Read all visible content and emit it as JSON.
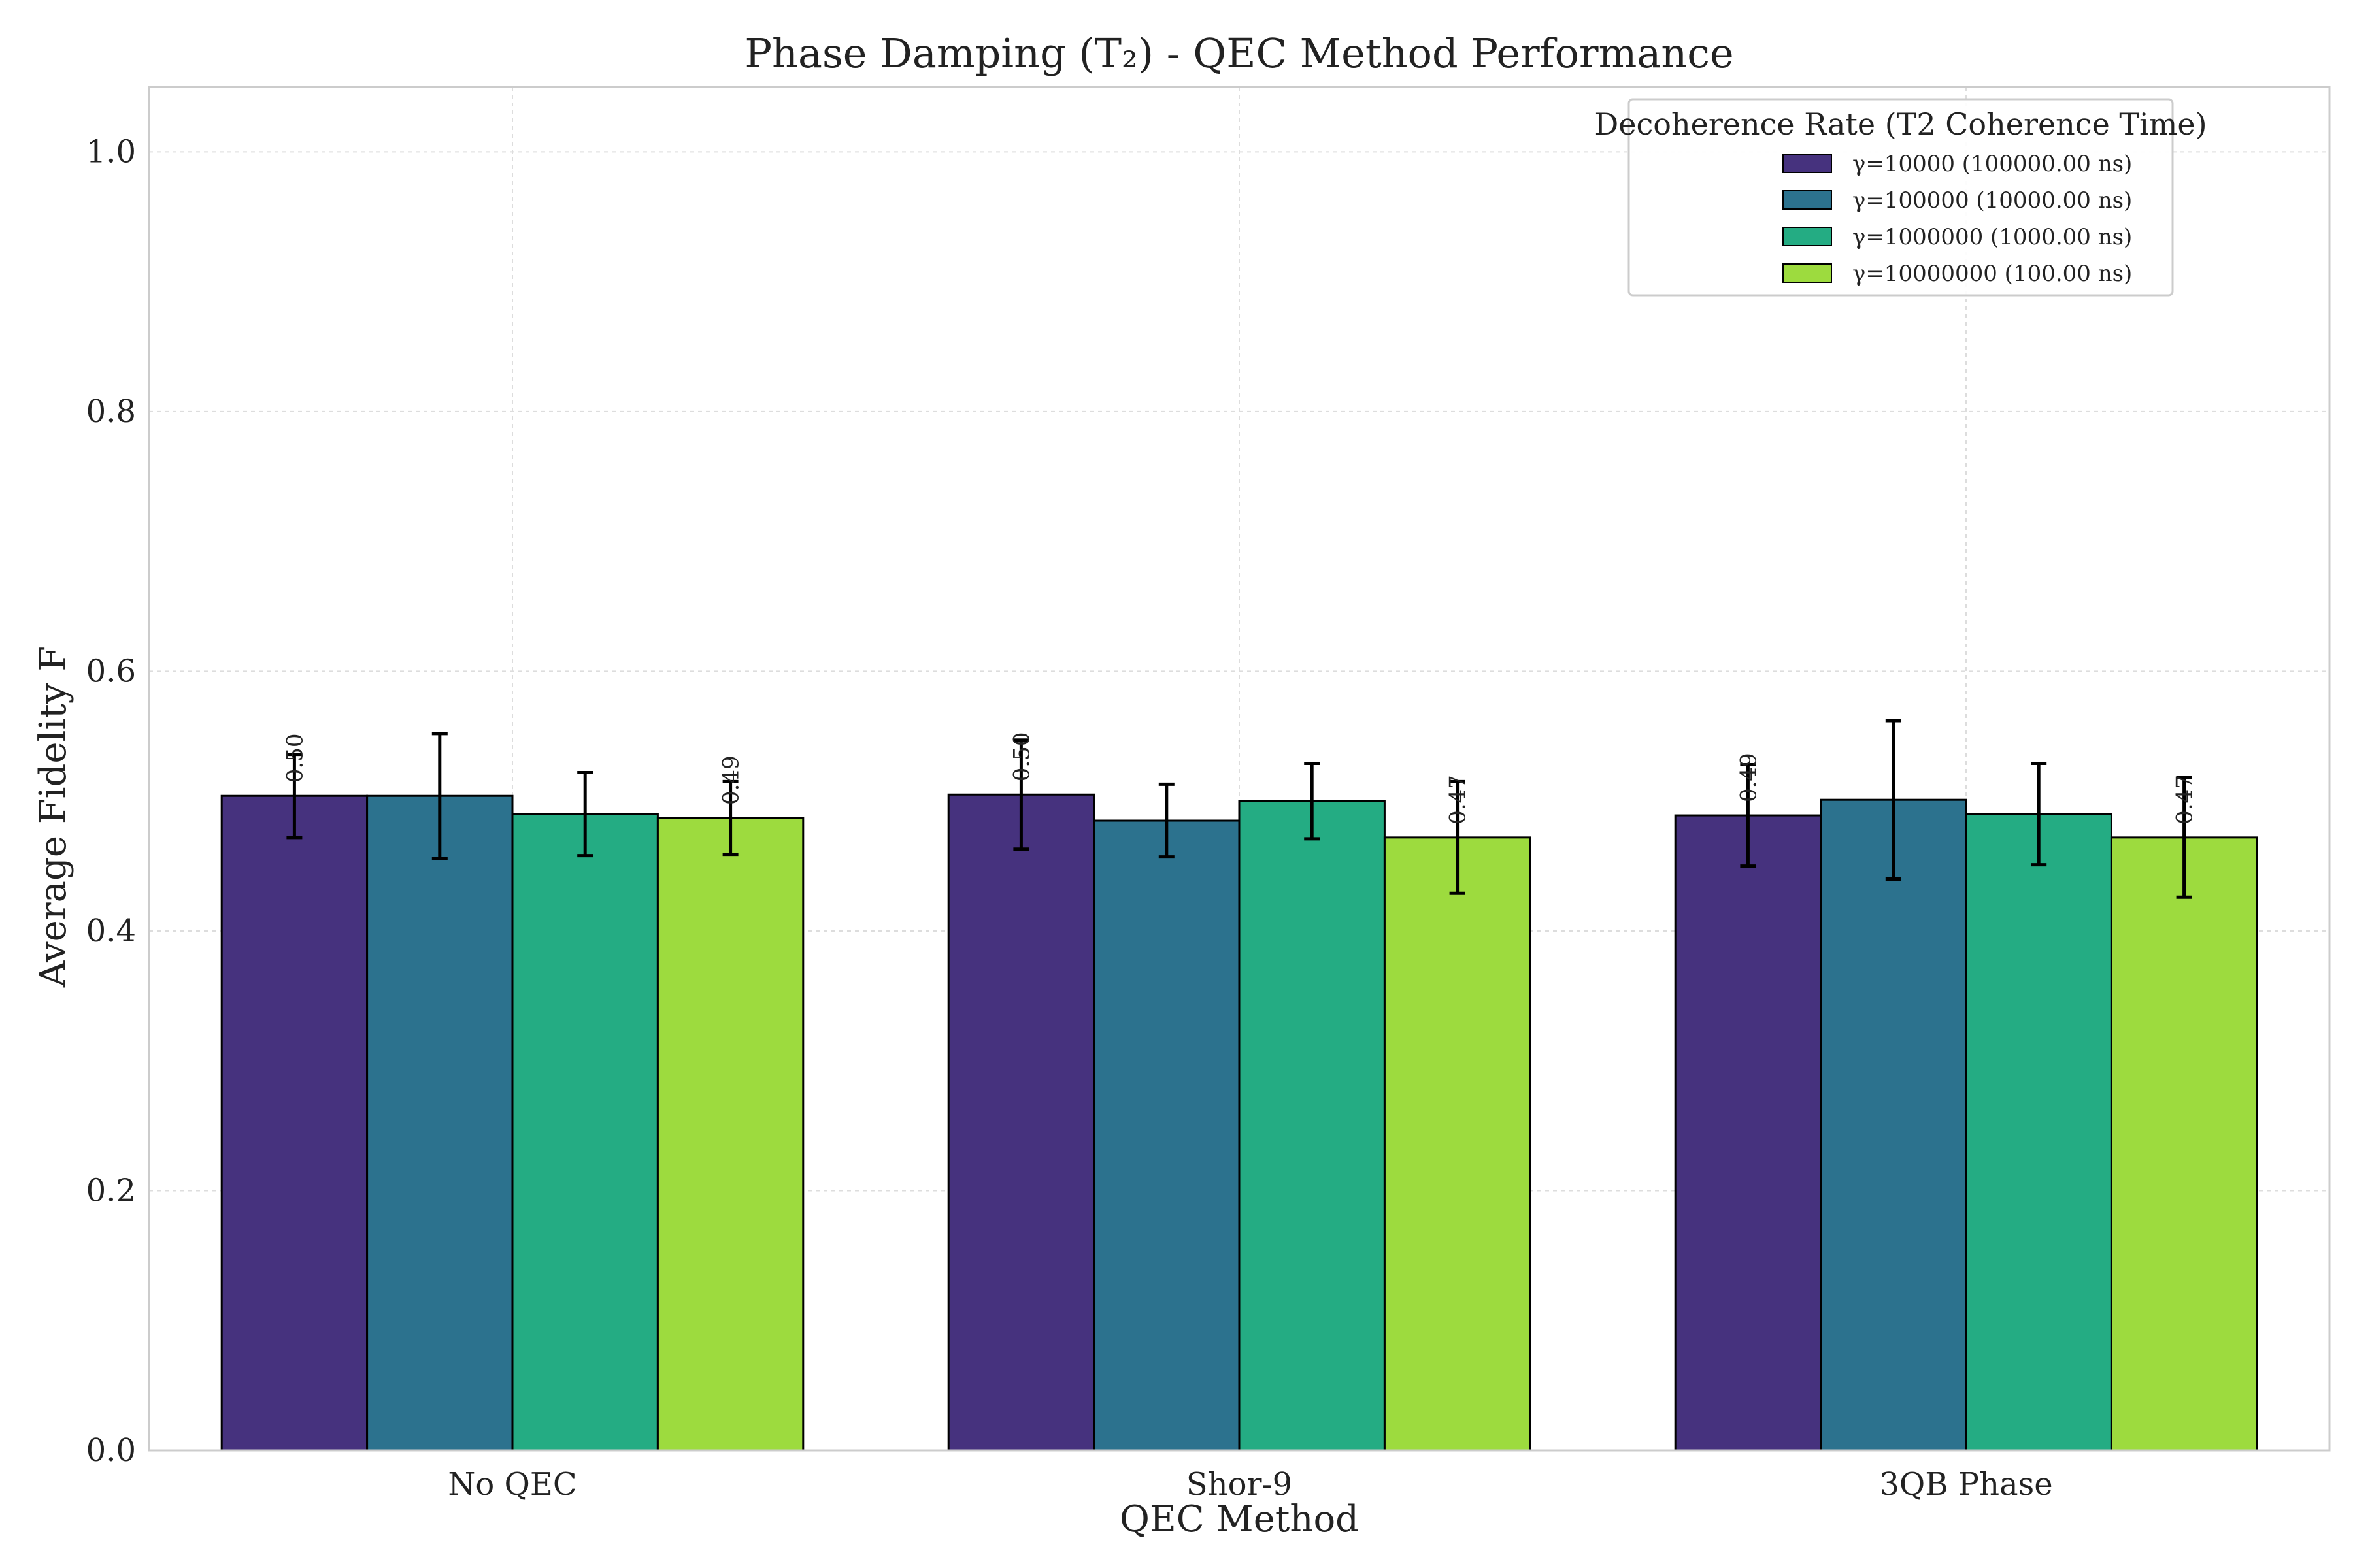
{
  "chart_data": {
    "type": "bar",
    "title": "Phase Damping (T₂) - QEC Method Performance",
    "xlabel": "QEC Method",
    "ylabel": "Average Fidelity F",
    "categories": [
      "No QEC",
      "Shor-9",
      "3QB Phase"
    ],
    "ylim": [
      0,
      1.05
    ],
    "yticks": [
      0.0,
      0.2,
      0.4,
      0.6,
      0.8,
      1.0
    ],
    "ytick_labels": [
      "0.0",
      "0.2",
      "0.4",
      "0.6",
      "0.8",
      "1.0"
    ],
    "grid": true,
    "legend_title": "Decoherence Rate (T2 Coherence Time)",
    "legend_position": "top-right",
    "series": [
      {
        "name": "γ=10000 (100000.00 ns)",
        "color": "#46327e",
        "values": [
          0.504,
          0.505,
          0.489
        ],
        "errors": [
          0.032,
          0.042,
          0.039
        ],
        "labels": [
          "0.50",
          "0.50",
          "0.49"
        ]
      },
      {
        "name": "γ=100000 (10000.00 ns)",
        "color": "#2c728e",
        "values": [
          0.504,
          0.485,
          0.501
        ],
        "errors": [
          0.048,
          0.028,
          0.061
        ],
        "labels": [
          "",
          "",
          ""
        ]
      },
      {
        "name": "γ=1000000 (1000.00 ns)",
        "color": "#24ac83",
        "values": [
          0.49,
          0.5,
          0.49
        ],
        "errors": [
          0.032,
          0.029,
          0.039
        ],
        "labels": [
          "",
          "",
          ""
        ]
      },
      {
        "name": "γ=10000000 (100.00 ns)",
        "color": "#9ddb3e",
        "values": [
          0.487,
          0.472,
          0.472
        ],
        "errors": [
          0.028,
          0.043,
          0.046
        ],
        "labels": [
          "0.49",
          "0.47",
          "0.47"
        ]
      }
    ]
  }
}
